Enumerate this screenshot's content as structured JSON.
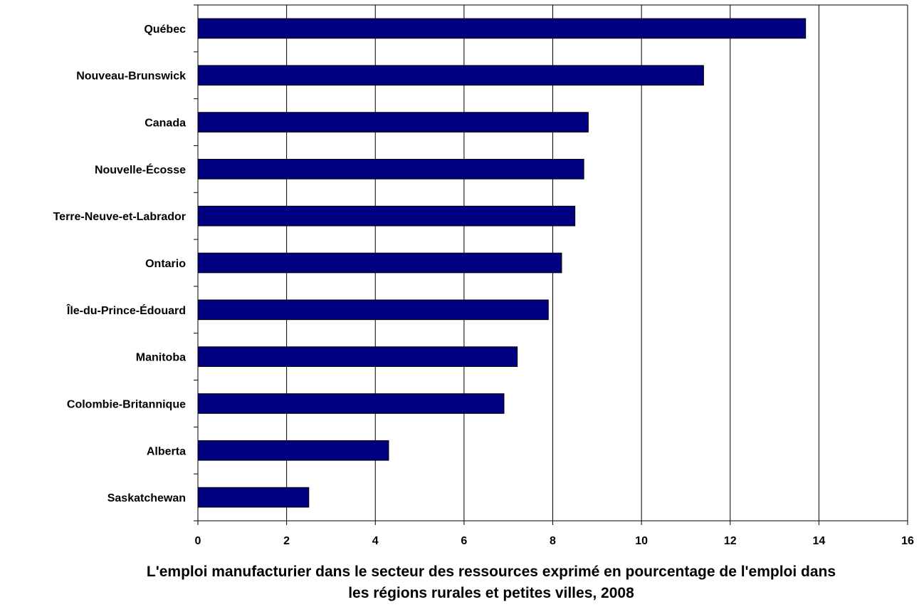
{
  "chart_data": {
    "type": "bar",
    "orientation": "horizontal",
    "categories": [
      "Québec",
      "Nouveau-Brunswick",
      "Canada",
      "Nouvelle-Écosse",
      "Terre-Neuve-et-Labrador",
      "Ontario",
      "Île-du-Prince-Édouard",
      "Manitoba",
      "Colombie-Britannique",
      "Alberta",
      "Saskatchewan"
    ],
    "values": [
      13.7,
      11.4,
      8.8,
      8.7,
      8.5,
      8.2,
      7.9,
      7.2,
      6.9,
      4.3,
      2.5
    ],
    "xlim": [
      0,
      16
    ],
    "xticks": [
      "0",
      "2",
      "4",
      "6",
      "8",
      "10",
      "12",
      "14",
      "16"
    ],
    "xlabel_line1": "L'emploi manufacturier dans le secteur des ressources exprimé en pourcentage de l'emploi dans",
    "xlabel_line2": "les régions rurales et petites villes, 2008",
    "grid": "vertical",
    "bar_color": "#000080"
  }
}
